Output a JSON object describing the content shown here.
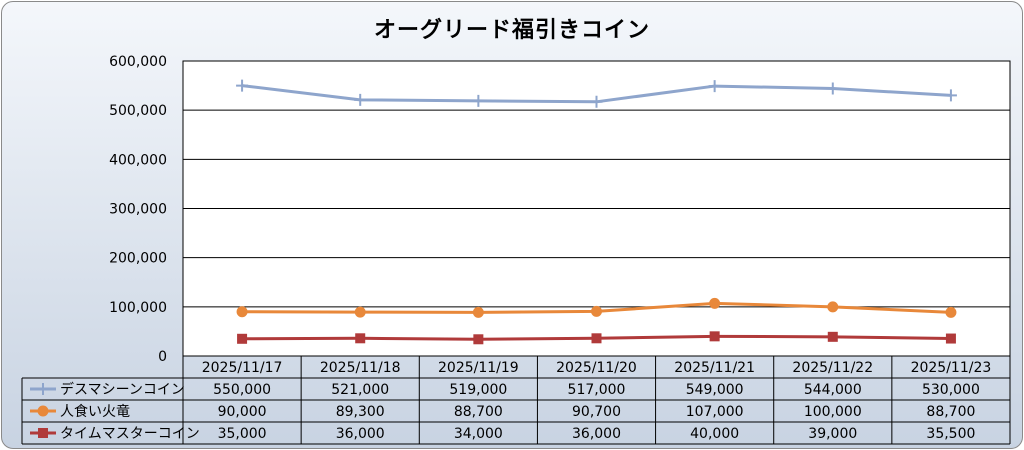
{
  "chart_data": {
    "type": "line",
    "title": "オーグリード福引きコイン",
    "x": [
      "2025/11/17",
      "2025/11/18",
      "2025/11/19",
      "2025/11/20",
      "2025/11/21",
      "2025/11/22",
      "2025/11/23"
    ],
    "ylim": [
      0,
      600000
    ],
    "yticks": [
      "0",
      "100,000",
      "200,000",
      "300,000",
      "400,000",
      "500,000",
      "600,000"
    ],
    "grid": true,
    "legend": "data-table",
    "series": [
      {
        "name": "デスマシーンコイン",
        "values": [
          550000,
          521000,
          519000,
          517000,
          549000,
          544000,
          530000
        ],
        "labels": [
          "550,000",
          "521,000",
          "519,000",
          "517,000",
          "549,000",
          "544,000",
          "530,000"
        ],
        "color": "#8ea5cc",
        "marker": "plus"
      },
      {
        "name": "人食い火竜",
        "values": [
          90000,
          89300,
          88700,
          90700,
          107000,
          100000,
          88700
        ],
        "labels": [
          "90,000",
          "89,300",
          "88,700",
          "90,700",
          "107,000",
          "100,000",
          "88,700"
        ],
        "color": "#e8883a",
        "marker": "circle"
      },
      {
        "name": "タイムマスターコイン",
        "values": [
          35000,
          36000,
          34000,
          36000,
          40000,
          39000,
          35500
        ],
        "labels": [
          "35,000",
          "36,000",
          "34,000",
          "36,000",
          "40,000",
          "39,000",
          "35,500"
        ],
        "color": "#b03a3a",
        "marker": "square"
      }
    ]
  }
}
